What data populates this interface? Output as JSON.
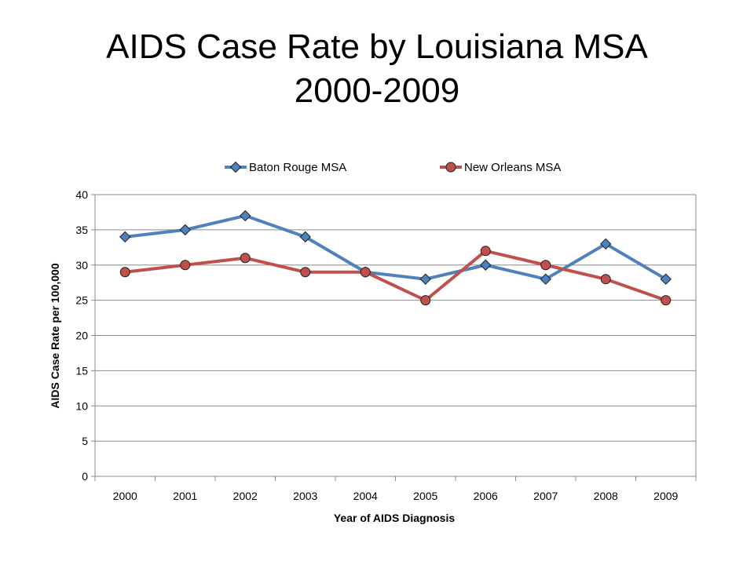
{
  "chart_data": {
    "type": "line",
    "title_line1": "AIDS Case Rate by Louisiana MSA",
    "title_line2": "2000-2009",
    "xlabel": "Year of AIDS Diagnosis",
    "ylabel": "AIDS Case Rate per 100,000",
    "ylim": [
      0,
      40
    ],
    "ytick_step": 5,
    "grid": true,
    "legend_position": "top",
    "categories": [
      "2000",
      "2001",
      "2002",
      "2003",
      "2004",
      "2005",
      "2006",
      "2007",
      "2008",
      "2009"
    ],
    "series": [
      {
        "name": "Baton Rouge MSA",
        "color": "#4F81BD",
        "marker": "diamond",
        "values": [
          34,
          35,
          37,
          34,
          29,
          28,
          30,
          28,
          33,
          28
        ]
      },
      {
        "name": "New Orleans MSA",
        "color": "#C0504D",
        "marker": "circle",
        "values": [
          29,
          30,
          31,
          29,
          29,
          25,
          32,
          30,
          28,
          25
        ]
      }
    ]
  }
}
